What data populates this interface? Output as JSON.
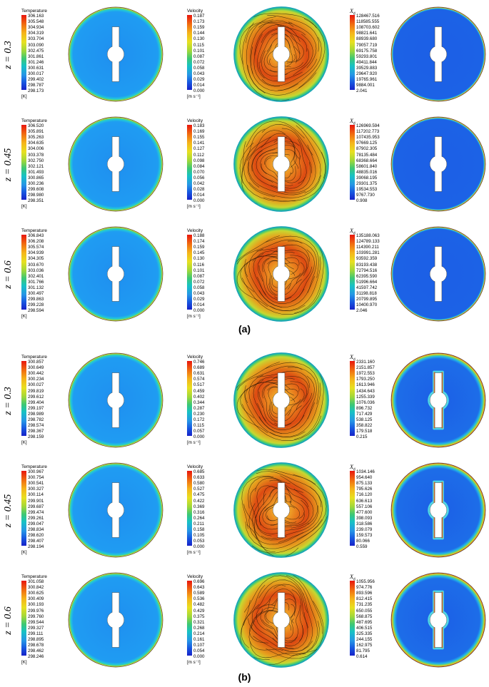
{
  "panels": [
    {
      "label": "(a)",
      "rows": [
        {
          "z": "z = 0.3",
          "temperature": {
            "title": "Temperature",
            "unit": "[K]",
            "ticks": [
              "306.163",
              "305.548",
              "304.934",
              "304.319",
              "303.704",
              "303.090",
              "302.475",
              "301.861",
              "301.246",
              "300.631",
              "300.017",
              "299.402",
              "298.787",
              "298.173"
            ]
          },
          "velocity": {
            "title": "Velocity",
            "unit": "[m s⁻¹]",
            "ticks": [
              "0.187",
              "0.173",
              "0.159",
              "0.144",
              "0.130",
              "0.115",
              "0.101",
              "0.087",
              "0.072",
              "0.058",
              "0.043",
              "0.029",
              "0.014",
              "0.000"
            ]
          },
          "xd": {
            "title": "X",
            "sub": "d",
            "ticks": [
              "128467.516",
              "118585.555",
              "108703.602",
              "98821.641",
              "88939.680",
              "79057.719",
              "69175.758",
              "59293.801",
              "49411.844",
              "39529.883",
              "29647.920",
              "19765.961",
              "9884.001",
              "2.041"
            ]
          }
        },
        {
          "z": "z = 0.45",
          "temperature": {
            "title": "Temperature",
            "unit": "[K]",
            "ticks": [
              "306.520",
              "305.891",
              "305.263",
              "304.635",
              "304.006",
              "303.378",
              "302.750",
              "302.121",
              "301.493",
              "300.865",
              "300.236",
              "299.608",
              "298.980",
              "298.351"
            ]
          },
          "velocity": {
            "title": "Velocity",
            "unit": "[m s⁻¹]",
            "ticks": [
              "0.183",
              "0.169",
              "0.155",
              "0.141",
              "0.127",
              "0.112",
              "0.098",
              "0.084",
              "0.070",
              "0.056",
              "0.042",
              "0.028",
              "0.014",
              "0.000"
            ]
          },
          "xd": {
            "title": "X",
            "sub": "d",
            "ticks": [
              "126969.594",
              "117202.773",
              "107435.953",
              "97669.125",
              "87902.305",
              "78135.484",
              "68368.664",
              "58601.840",
              "48835.016",
              "39068.195",
              "29301.375",
              "19534.553",
              "9767.730",
              "0.908"
            ]
          }
        },
        {
          "z": "z = 0.6",
          "temperature": {
            "title": "Temperature",
            "unit": "[K]",
            "ticks": [
              "306.843",
              "306.208",
              "305.574",
              "304.939",
              "304.305",
              "303.670",
              "303.036",
              "302.401",
              "301.766",
              "301.132",
              "300.497",
              "299.863",
              "299.228",
              "298.594"
            ]
          },
          "velocity": {
            "title": "Velocity",
            "unit": "[m s⁻¹]",
            "ticks": [
              "0.188",
              "0.174",
              "0.159",
              "0.145",
              "0.130",
              "0.116",
              "0.101",
              "0.087",
              "0.072",
              "0.058",
              "0.043",
              "0.029",
              "0.014",
              "0.000"
            ]
          },
          "xd": {
            "title": "X",
            "sub": "d",
            "ticks": [
              "135188.063",
              "124789.133",
              "114390.211",
              "103991.281",
              "93592.359",
              "83193.438",
              "72794.516",
              "62395.590",
              "51996.664",
              "41597.742",
              "31198.818",
              "20799.895",
              "10400.970",
              "2.046"
            ]
          }
        }
      ]
    },
    {
      "label": "(b)",
      "rows": [
        {
          "z": "z = 0.3",
          "temperature": {
            "title": "Temperature",
            "unit": "[K]",
            "ticks": [
              "300.857",
              "300.649",
              "300.442",
              "300.234",
              "300.027",
              "299.819",
              "299.612",
              "299.404",
              "299.197",
              "298.989",
              "298.782",
              "298.574",
              "298.367",
              "298.159"
            ]
          },
          "velocity": {
            "title": "Velocity",
            "unit": "[m s⁻¹]",
            "ticks": [
              "0.746",
              "0.689",
              "0.631",
              "0.574",
              "0.517",
              "0.459",
              "0.402",
              "0.344",
              "0.287",
              "0.230",
              "0.172",
              "0.115",
              "0.057",
              "0.000"
            ]
          },
          "xd": {
            "title": "X",
            "sub": "d",
            "ticks": [
              "2331.160",
              "2151.857",
              "1972.553",
              "1793.250",
              "1613.946",
              "1434.643",
              "1255.339",
              "1076.036",
              "896.732",
              "717.429",
              "538.125",
              "358.822",
              "179.518",
              "0.215"
            ]
          }
        },
        {
          "z": "z = 0.45",
          "temperature": {
            "title": "Temperature",
            "unit": "[K]",
            "ticks": [
              "300.967",
              "300.754",
              "300.541",
              "300.327",
              "300.114",
              "299.901",
              "299.687",
              "299.474",
              "299.261",
              "299.047",
              "298.834",
              "298.620",
              "298.407",
              "298.194"
            ]
          },
          "velocity": {
            "title": "Velocity",
            "unit": "[m s⁻¹]",
            "ticks": [
              "0.685",
              "0.633",
              "0.580",
              "0.527",
              "0.475",
              "0.422",
              "0.369",
              "0.316",
              "0.264",
              "0.211",
              "0.158",
              "0.105",
              "0.053",
              "0.000"
            ]
          },
          "xd": {
            "title": "X",
            "sub": "d",
            "ticks": [
              "1034.146",
              "954.640",
              "875.133",
              "795.626",
              "716.120",
              "636.613",
              "557.106",
              "477.600",
              "398.093",
              "318.586",
              "239.079",
              "159.573",
              "80.066",
              "0.559"
            ]
          }
        },
        {
          "z": "z = 0.6",
          "temperature": {
            "title": "Temperature",
            "unit": "[K]",
            "ticks": [
              "301.058",
              "300.842",
              "300.625",
              "300.409",
              "300.193",
              "299.976",
              "299.760",
              "299.544",
              "299.327",
              "299.111",
              "298.895",
              "298.678",
              "298.462",
              "298.246"
            ]
          },
          "velocity": {
            "title": "Velocity",
            "unit": "[m s⁻¹]",
            "ticks": [
              "0.696",
              "0.643",
              "0.589",
              "0.536",
              "0.482",
              "0.429",
              "0.375",
              "0.321",
              "0.268",
              "0.214",
              "0.161",
              "0.107",
              "0.054",
              "0.000"
            ]
          },
          "xd": {
            "title": "X",
            "sub": "d",
            "ticks": [
              "1055.956",
              "974.776",
              "893.596",
              "812.415",
              "731.235",
              "650.055",
              "568.875",
              "487.695",
              "406.515",
              "325.335",
              "244.155",
              "162.975",
              "81.795",
              "0.614"
            ]
          }
        }
      ]
    }
  ]
}
